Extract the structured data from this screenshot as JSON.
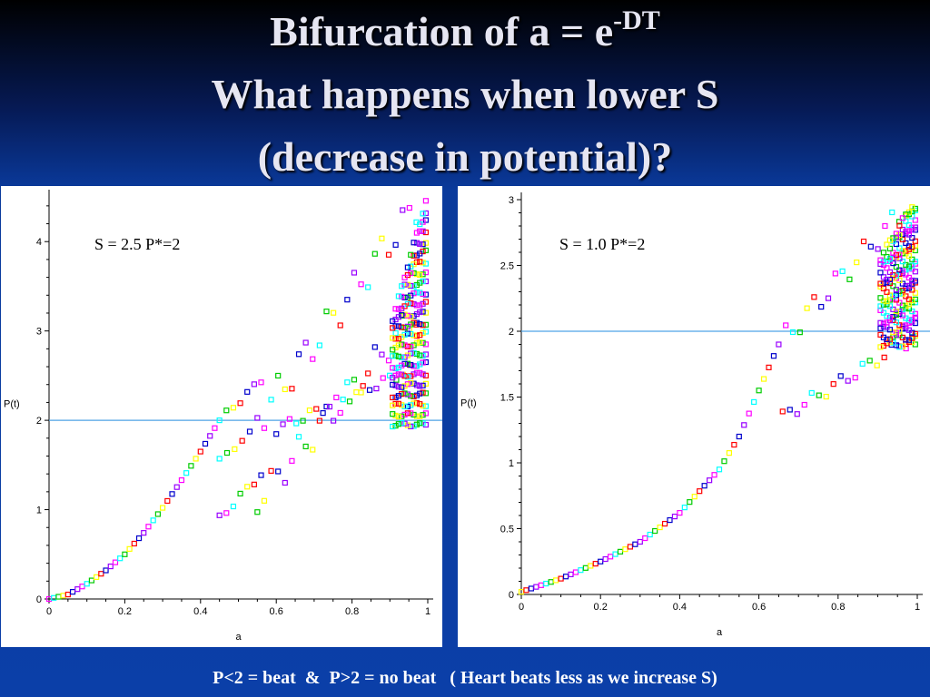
{
  "slide": {
    "title_line1_prefix": "Bifurcation of  a = e",
    "title_line1_superscript": "-DT",
    "title_line2": "What happens when lower S",
    "title_line3": "(decrease in potential)?",
    "footer": "P<2 = beat  &  P>2 = no beat   ( Heart beats less as we increase S)"
  },
  "colors": {
    "background_top": "#000000",
    "background_main": "#0b3fa8",
    "reference_line": "#4fa3e6",
    "marker_palette": [
      "#ff00ff",
      "#00ffff",
      "#00cc00",
      "#ffff00",
      "#ff0000",
      "#0000cc",
      "#9900ff"
    ]
  },
  "chart_data": [
    {
      "type": "scatter",
      "annotation": "S = 2.5 P*=2",
      "xlabel": "a",
      "ylabel": "P(t)",
      "xlim": [
        0,
        1
      ],
      "ylim": [
        0,
        4.5
      ],
      "xticks": [
        "0",
        "0.2",
        "0.4",
        "0.6",
        "0.8",
        "1"
      ],
      "yticks": [
        "0",
        "1",
        "2",
        "3",
        "4"
      ],
      "reference_line_y": 2,
      "grid": false,
      "marker": "hollow square",
      "series": [
        {
          "values_description_stable": [
            [
              0.0,
              0.0
            ],
            [
              0.05,
              0.05
            ],
            [
              0.1,
              0.17
            ],
            [
              0.15,
              0.32
            ],
            [
              0.2,
              0.5
            ],
            [
              0.25,
              0.74
            ],
            [
              0.3,
              1.02
            ],
            [
              0.35,
              1.33
            ],
            [
              0.4,
              1.65
            ],
            [
              0.45,
              2.0
            ]
          ],
          "branches": [
            {
              "x": [
                0.45,
                0.56
              ],
              "y": [
                2.0,
                2.45
              ]
            },
            {
              "x": [
                0.45,
                0.53
              ],
              "y": [
                1.55,
                1.85
              ]
            },
            {
              "x": [
                0.45,
                0.56
              ],
              "y": [
                0.9,
                1.4
              ]
            },
            {
              "x": [
                0.55,
                0.97
              ],
              "y": [
                2.0,
                4.4
              ]
            },
            {
              "x": [
                0.55,
                0.97
              ],
              "y": [
                1.1,
                3.2
              ]
            },
            {
              "x": [
                0.6,
                0.97
              ],
              "y": [
                1.9,
                2.6
              ]
            }
          ]
        }
      ]
    },
    {
      "type": "scatter",
      "annotation": "S = 1.0 P*=2",
      "xlabel": "a",
      "ylabel": "P(t)",
      "xlim": [
        0,
        1
      ],
      "ylim": [
        0,
        3
      ],
      "xticks": [
        "0",
        "0.2",
        "0.4",
        "0.6",
        "0.8",
        "1"
      ],
      "yticks": [
        "0",
        "0.5",
        "1",
        "1.5",
        "2",
        "2.5",
        "3"
      ],
      "reference_line_y": 2,
      "grid": false,
      "marker": "hollow square",
      "series": [
        {
          "values_description_stable": [
            [
              0.0,
              0.02
            ],
            [
              0.1,
              0.12
            ],
            [
              0.2,
              0.25
            ],
            [
              0.3,
              0.4
            ],
            [
              0.4,
              0.62
            ],
            [
              0.5,
              0.95
            ],
            [
              0.55,
              1.2
            ],
            [
              0.6,
              1.55
            ],
            [
              0.65,
              1.9
            ]
          ],
          "branches": [
            {
              "x": [
                0.65,
                0.99
              ],
              "y": [
                1.9,
                3.0
              ]
            },
            {
              "x": [
                0.66,
                0.99
              ],
              "y": [
                1.35,
                1.95
              ]
            }
          ]
        }
      ]
    }
  ]
}
